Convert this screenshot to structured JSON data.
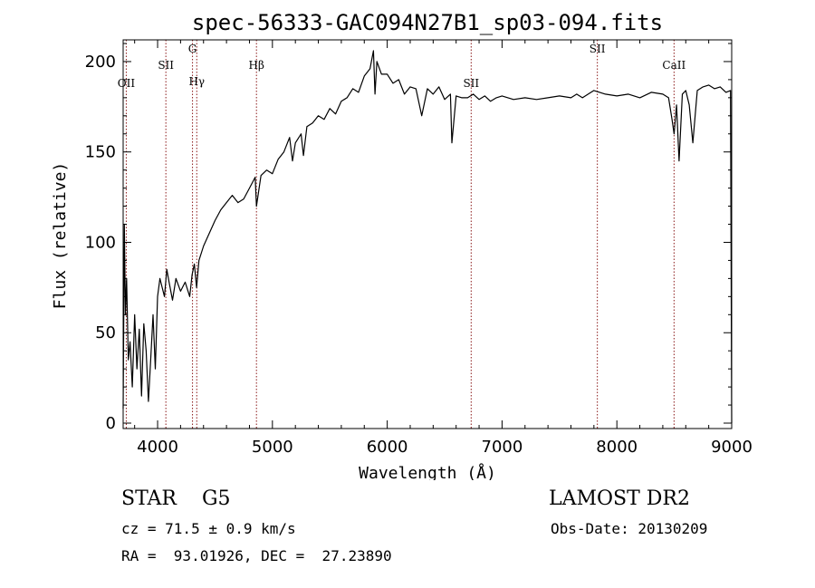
{
  "chart_data": {
    "type": "line",
    "title": "spec-56333-GAC094N27B1_sp03-094.fits",
    "xlabel": "Wavelength (Å)",
    "ylabel": "Flux (relative)",
    "xlim": [
      3700,
      9000
    ],
    "ylim": [
      -3,
      212
    ],
    "xticks": [
      4000,
      5000,
      6000,
      7000,
      8000,
      9000
    ],
    "yticks": [
      0,
      50,
      100,
      150,
      200
    ],
    "grid": false,
    "line_color": "#000000",
    "marker_color": "#8b1a1a",
    "spectral_lines": [
      {
        "label": "OII",
        "wavelength": 3727,
        "label_flux": 186
      },
      {
        "label": "SII",
        "wavelength": 4072,
        "label_flux": 196
      },
      {
        "label": "Hγ",
        "wavelength": 4341,
        "label_flux": 187
      },
      {
        "label": "G",
        "wavelength": 4304,
        "label_flux": 205
      },
      {
        "label": "Hβ",
        "wavelength": 4861,
        "label_flux": 196
      },
      {
        "label": "SII",
        "wavelength": 6731,
        "label_flux": 186
      },
      {
        "label": "SII",
        "wavelength": 7830,
        "label_flux": 205
      },
      {
        "label": "CaII",
        "wavelength": 8498,
        "label_flux": 196
      }
    ],
    "series": [
      {
        "x": [
          3700,
          3710,
          3720,
          3730,
          3745,
          3760,
          3780,
          3800,
          3820,
          3840,
          3860,
          3880,
          3900,
          3920,
          3940,
          3960,
          3980,
          4000,
          4020,
          4040,
          4060,
          4080,
          4100,
          4130,
          4160,
          4200,
          4240,
          4280,
          4300,
          4320,
          4340,
          4360,
          4400,
          4450,
          4500,
          4550,
          4600,
          4650,
          4700,
          4750,
          4800,
          4850,
          4861,
          4900,
          4950,
          5000,
          5050,
          5100,
          5150,
          5175,
          5200,
          5250,
          5270,
          5300,
          5350,
          5400,
          5450,
          5500,
          5550,
          5600,
          5650,
          5700,
          5750,
          5800,
          5850,
          5880,
          5893,
          5910,
          5950,
          6000,
          6050,
          6100,
          6150,
          6200,
          6250,
          6300,
          6350,
          6400,
          6450,
          6500,
          6550,
          6563,
          6600,
          6650,
          6700,
          6750,
          6800,
          6850,
          6900,
          6950,
          7000,
          7100,
          7200,
          7300,
          7400,
          7500,
          7600,
          7650,
          7700,
          7800,
          7850,
          7900,
          8000,
          8100,
          8200,
          8300,
          8400,
          8450,
          8480,
          8498,
          8520,
          8542,
          8570,
          8600,
          8630,
          8662,
          8700,
          8750,
          8800,
          8850,
          8900,
          8950,
          8990,
          9000
        ],
        "y": [
          8,
          110,
          60,
          80,
          35,
          45,
          20,
          60,
          30,
          52,
          15,
          55,
          40,
          12,
          35,
          60,
          30,
          70,
          80,
          75,
          70,
          85,
          78,
          68,
          80,
          73,
          78,
          70,
          82,
          88,
          75,
          90,
          98,
          105,
          112,
          118,
          122,
          126,
          122,
          124,
          130,
          136,
          120,
          137,
          140,
          138,
          146,
          150,
          158,
          145,
          155,
          160,
          148,
          164,
          166,
          170,
          168,
          174,
          171,
          178,
          180,
          185,
          183,
          192,
          196,
          206,
          182,
          200,
          193,
          193,
          188,
          190,
          182,
          186,
          185,
          170,
          185,
          182,
          186,
          179,
          182,
          155,
          181,
          180,
          180,
          182,
          179,
          181,
          178,
          180,
          181,
          179,
          180,
          179,
          180,
          181,
          180,
          182,
          180,
          184,
          183,
          182,
          181,
          182,
          180,
          183,
          182,
          180,
          168,
          160,
          176,
          145,
          182,
          184,
          176,
          155,
          184,
          186,
          187,
          185,
          186,
          183,
          184,
          0
        ]
      }
    ]
  },
  "info": {
    "object_class": "STAR    G5",
    "survey": "LAMOST DR2",
    "velocity": "cz = 71.5 ± 0.9 km/s",
    "obs_date": "Obs-Date: 20130209",
    "coords": "RA =  93.01926, DEC =  27.23890"
  }
}
